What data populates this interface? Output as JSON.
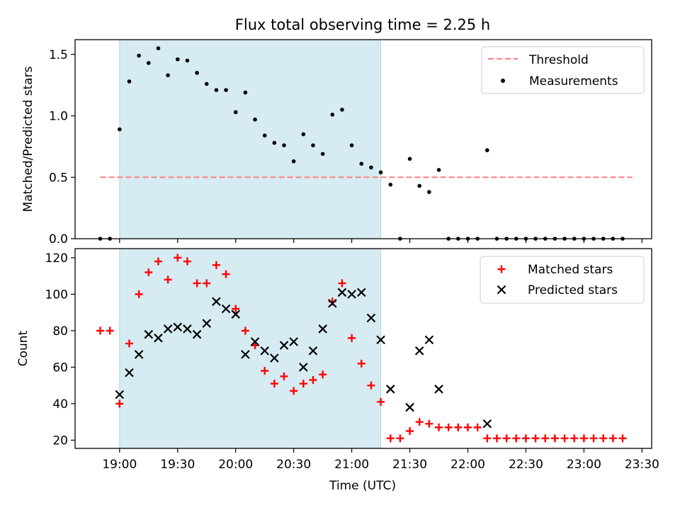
{
  "chart_data": [
    {
      "type": "scatter",
      "title": "Flux total observing time = 2.25 h",
      "xlabel": "",
      "ylabel": "Matched/Predicted stars",
      "xlim": [
        "18:37",
        "23:35"
      ],
      "ylim": [
        0,
        1.62
      ],
      "yticks": [
        {
          "value": 0.0,
          "label": "0.0"
        },
        {
          "value": 0.5,
          "label": "0.5"
        },
        {
          "value": 1.0,
          "label": "1.0"
        },
        {
          "value": 1.5,
          "label": "1.5"
        }
      ],
      "x_tick_labels_shown": false,
      "observing_window": {
        "start": "19:00",
        "end": "21:15",
        "color": "#add8e6"
      },
      "legend_placement": "top-right",
      "series": [
        {
          "name": "Threshold",
          "kind": "dashed-line",
          "color": "#ff7f7f",
          "points": [
            {
              "x": "18:50",
              "y": 0.5
            },
            {
              "x": "23:25",
              "y": 0.5
            }
          ]
        },
        {
          "name": "Measurements",
          "kind": "dot",
          "color": "#000000",
          "points": [
            {
              "x": "18:50",
              "y": 0.0
            },
            {
              "x": "18:55",
              "y": 0.0
            },
            {
              "x": "19:00",
              "y": 0.89
            },
            {
              "x": "19:05",
              "y": 1.28
            },
            {
              "x": "19:10",
              "y": 1.49
            },
            {
              "x": "19:15",
              "y": 1.43
            },
            {
              "x": "19:20",
              "y": 1.55
            },
            {
              "x": "19:25",
              "y": 1.33
            },
            {
              "x": "19:30",
              "y": 1.46
            },
            {
              "x": "19:35",
              "y": 1.45
            },
            {
              "x": "19:40",
              "y": 1.35
            },
            {
              "x": "19:45",
              "y": 1.26
            },
            {
              "x": "19:50",
              "y": 1.21
            },
            {
              "x": "19:55",
              "y": 1.21
            },
            {
              "x": "20:00",
              "y": 1.03
            },
            {
              "x": "20:05",
              "y": 1.19
            },
            {
              "x": "20:10",
              "y": 0.97
            },
            {
              "x": "20:15",
              "y": 0.84
            },
            {
              "x": "20:20",
              "y": 0.78
            },
            {
              "x": "20:25",
              "y": 0.76
            },
            {
              "x": "20:30",
              "y": 0.63
            },
            {
              "x": "20:35",
              "y": 0.85
            },
            {
              "x": "20:40",
              "y": 0.76
            },
            {
              "x": "20:45",
              "y": 0.69
            },
            {
              "x": "20:50",
              "y": 1.01
            },
            {
              "x": "20:55",
              "y": 1.05
            },
            {
              "x": "21:00",
              "y": 0.76
            },
            {
              "x": "21:05",
              "y": 0.61
            },
            {
              "x": "21:10",
              "y": 0.58
            },
            {
              "x": "21:15",
              "y": 0.54
            },
            {
              "x": "21:20",
              "y": 0.44
            },
            {
              "x": "21:25",
              "y": 0.0
            },
            {
              "x": "21:30",
              "y": 0.65
            },
            {
              "x": "21:35",
              "y": 0.43
            },
            {
              "x": "21:40",
              "y": 0.38
            },
            {
              "x": "21:45",
              "y": 0.56
            },
            {
              "x": "21:50",
              "y": 0.0
            },
            {
              "x": "21:55",
              "y": 0.0
            },
            {
              "x": "22:00",
              "y": 0.0
            },
            {
              "x": "22:05",
              "y": 0.0
            },
            {
              "x": "22:10",
              "y": 0.72
            },
            {
              "x": "22:15",
              "y": 0.0
            },
            {
              "x": "22:20",
              "y": 0.0
            },
            {
              "x": "22:25",
              "y": 0.0
            },
            {
              "x": "22:30",
              "y": 0.0
            },
            {
              "x": "22:35",
              "y": 0.0
            },
            {
              "x": "22:40",
              "y": 0.0
            },
            {
              "x": "22:45",
              "y": 0.0
            },
            {
              "x": "22:50",
              "y": 0.0
            },
            {
              "x": "22:55",
              "y": 0.0
            },
            {
              "x": "23:00",
              "y": 0.0
            },
            {
              "x": "23:05",
              "y": 0.0
            },
            {
              "x": "23:10",
              "y": 0.0
            },
            {
              "x": "23:15",
              "y": 0.0
            },
            {
              "x": "23:20",
              "y": 0.0
            }
          ]
        }
      ]
    },
    {
      "type": "scatter",
      "title": "",
      "xlabel": "Time (UTC)",
      "ylabel": "Count",
      "xlim": [
        "18:37",
        "23:35"
      ],
      "ylim": [
        15.5,
        125
      ],
      "yticks": [
        {
          "value": 20,
          "label": "20"
        },
        {
          "value": 40,
          "label": "40"
        },
        {
          "value": 60,
          "label": "60"
        },
        {
          "value": 80,
          "label": "80"
        },
        {
          "value": 100,
          "label": "100"
        },
        {
          "value": 120,
          "label": "120"
        }
      ],
      "xticks": [
        {
          "value": "19:00",
          "label": "19:00"
        },
        {
          "value": "19:30",
          "label": "19:30"
        },
        {
          "value": "20:00",
          "label": "20:00"
        },
        {
          "value": "20:30",
          "label": "20:30"
        },
        {
          "value": "21:00",
          "label": "21:00"
        },
        {
          "value": "21:30",
          "label": "21:30"
        },
        {
          "value": "22:00",
          "label": "22:00"
        },
        {
          "value": "22:30",
          "label": "22:30"
        },
        {
          "value": "23:00",
          "label": "23:00"
        },
        {
          "value": "23:30",
          "label": "23:30"
        }
      ],
      "observing_window": {
        "start": "19:00",
        "end": "21:15",
        "color": "#add8e6"
      },
      "legend_placement": "top-right",
      "series": [
        {
          "name": "Matched stars",
          "kind": "plus",
          "color": "#ff0000",
          "points": [
            {
              "x": "18:50",
              "y": 80
            },
            {
              "x": "18:55",
              "y": 80
            },
            {
              "x": "19:00",
              "y": 40
            },
            {
              "x": "19:05",
              "y": 73
            },
            {
              "x": "19:10",
              "y": 100
            },
            {
              "x": "19:15",
              "y": 112
            },
            {
              "x": "19:20",
              "y": 118
            },
            {
              "x": "19:25",
              "y": 108
            },
            {
              "x": "19:30",
              "y": 120
            },
            {
              "x": "19:35",
              "y": 118
            },
            {
              "x": "19:40",
              "y": 106
            },
            {
              "x": "19:45",
              "y": 106
            },
            {
              "x": "19:50",
              "y": 116
            },
            {
              "x": "19:55",
              "y": 111
            },
            {
              "x": "20:00",
              "y": 92
            },
            {
              "x": "20:05",
              "y": 80
            },
            {
              "x": "20:10",
              "y": 72
            },
            {
              "x": "20:15",
              "y": 58
            },
            {
              "x": "20:20",
              "y": 51
            },
            {
              "x": "20:25",
              "y": 55
            },
            {
              "x": "20:30",
              "y": 47
            },
            {
              "x": "20:35",
              "y": 51
            },
            {
              "x": "20:40",
              "y": 53
            },
            {
              "x": "20:45",
              "y": 56
            },
            {
              "x": "20:50",
              "y": 96
            },
            {
              "x": "20:55",
              "y": 106
            },
            {
              "x": "21:00",
              "y": 76
            },
            {
              "x": "21:05",
              "y": 62
            },
            {
              "x": "21:10",
              "y": 50
            },
            {
              "x": "21:15",
              "y": 41
            },
            {
              "x": "21:20",
              "y": 21
            },
            {
              "x": "21:25",
              "y": 21
            },
            {
              "x": "21:30",
              "y": 25
            },
            {
              "x": "21:35",
              "y": 30
            },
            {
              "x": "21:40",
              "y": 29
            },
            {
              "x": "21:45",
              "y": 27
            },
            {
              "x": "21:50",
              "y": 27
            },
            {
              "x": "21:55",
              "y": 27
            },
            {
              "x": "22:00",
              "y": 27
            },
            {
              "x": "22:05",
              "y": 27
            },
            {
              "x": "22:10",
              "y": 21
            },
            {
              "x": "22:15",
              "y": 21
            },
            {
              "x": "22:20",
              "y": 21
            },
            {
              "x": "22:25",
              "y": 21
            },
            {
              "x": "22:30",
              "y": 21
            },
            {
              "x": "22:35",
              "y": 21
            },
            {
              "x": "22:40",
              "y": 21
            },
            {
              "x": "22:45",
              "y": 21
            },
            {
              "x": "22:50",
              "y": 21
            },
            {
              "x": "22:55",
              "y": 21
            },
            {
              "x": "23:00",
              "y": 21
            },
            {
              "x": "23:05",
              "y": 21
            },
            {
              "x": "23:10",
              "y": 21
            },
            {
              "x": "23:15",
              "y": 21
            },
            {
              "x": "23:20",
              "y": 21
            }
          ]
        },
        {
          "name": "Predicted stars",
          "kind": "x",
          "color": "#000000",
          "points": [
            {
              "x": "19:00",
              "y": 45
            },
            {
              "x": "19:05",
              "y": 57
            },
            {
              "x": "19:10",
              "y": 67
            },
            {
              "x": "19:15",
              "y": 78
            },
            {
              "x": "19:20",
              "y": 76
            },
            {
              "x": "19:25",
              "y": 81
            },
            {
              "x": "19:30",
              "y": 82
            },
            {
              "x": "19:35",
              "y": 81
            },
            {
              "x": "19:40",
              "y": 78
            },
            {
              "x": "19:45",
              "y": 84
            },
            {
              "x": "19:50",
              "y": 96
            },
            {
              "x": "19:55",
              "y": 92
            },
            {
              "x": "20:00",
              "y": 89
            },
            {
              "x": "20:05",
              "y": 67
            },
            {
              "x": "20:10",
              "y": 74
            },
            {
              "x": "20:15",
              "y": 69
            },
            {
              "x": "20:20",
              "y": 65
            },
            {
              "x": "20:25",
              "y": 72
            },
            {
              "x": "20:30",
              "y": 74
            },
            {
              "x": "20:35",
              "y": 60
            },
            {
              "x": "20:40",
              "y": 69
            },
            {
              "x": "20:45",
              "y": 81
            },
            {
              "x": "20:50",
              "y": 95
            },
            {
              "x": "20:55",
              "y": 101
            },
            {
              "x": "21:00",
              "y": 100
            },
            {
              "x": "21:05",
              "y": 101
            },
            {
              "x": "21:10",
              "y": 87
            },
            {
              "x": "21:15",
              "y": 75
            },
            {
              "x": "21:20",
              "y": 48
            },
            {
              "x": "21:30",
              "y": 38
            },
            {
              "x": "21:35",
              "y": 69
            },
            {
              "x": "21:40",
              "y": 75
            },
            {
              "x": "21:45",
              "y": 48
            },
            {
              "x": "22:10",
              "y": 29
            }
          ]
        }
      ]
    }
  ]
}
